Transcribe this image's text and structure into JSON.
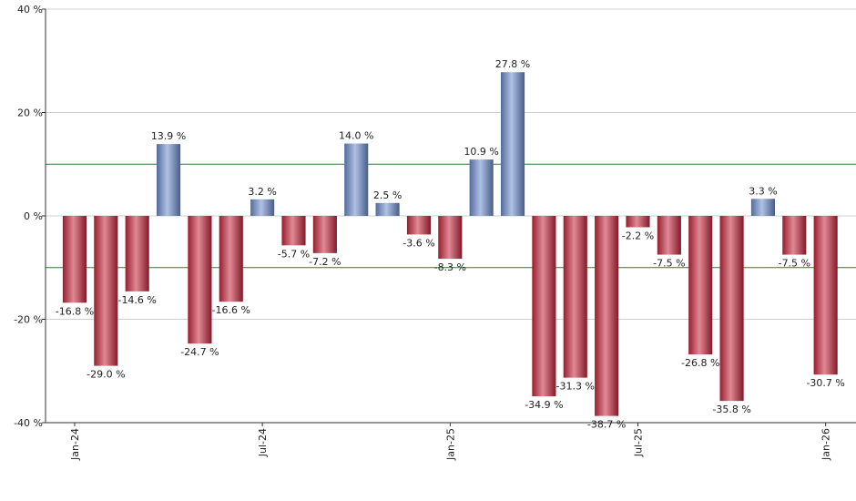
{
  "chart_data": {
    "type": "bar",
    "categories": [
      "Jan-24",
      null,
      null,
      null,
      null,
      null,
      "Jul-24",
      null,
      null,
      null,
      null,
      null,
      "Jan-25",
      null,
      null,
      null,
      null,
      null,
      "Jul-25",
      null,
      null,
      null,
      null,
      null,
      "Jan-26"
    ],
    "values": [
      -16.8,
      -29.0,
      -14.6,
      13.9,
      -24.7,
      -16.6,
      3.2,
      -5.7,
      -7.2,
      14.0,
      2.5,
      -3.6,
      -8.3,
      10.9,
      27.8,
      -34.9,
      -31.3,
      -38.7,
      -2.2,
      -7.5,
      -26.8,
      -35.8,
      3.3,
      -7.5,
      -30.7
    ],
    "value_labels": [
      "-16.8 %",
      "-29.0 %",
      "-14.6 %",
      "13.9 %",
      "-24.7 %",
      "-16.6 %",
      "3.2 %",
      "-5.7 %",
      "-7.2 %",
      "14.0 %",
      "2.5 %",
      "-3.6 %",
      "-8.3 %",
      "10.9 %",
      "27.8 %",
      "-34.9 %",
      "-31.3 %",
      "-38.7 %",
      "-2.2 %",
      "-7.5 %",
      "-26.8 %",
      "-35.8 %",
      "3.3 %",
      "-7.5 %",
      "-30.7 %"
    ],
    "positive_color": "#6f8fd0",
    "negative_color": "#c8283f",
    "ylim": [
      -40,
      40
    ],
    "yticks": [
      {
        "value": -40,
        "label": "-40 %"
      },
      {
        "value": -20,
        "label": "-20 %"
      },
      {
        "value": 0,
        "label": "0 %"
      },
      {
        "value": 20,
        "label": "20 %"
      },
      {
        "value": 40,
        "label": "40 %"
      }
    ],
    "grid": true,
    "reference_lines": [
      10,
      -10
    ],
    "reference_color": "#2e7d32"
  }
}
